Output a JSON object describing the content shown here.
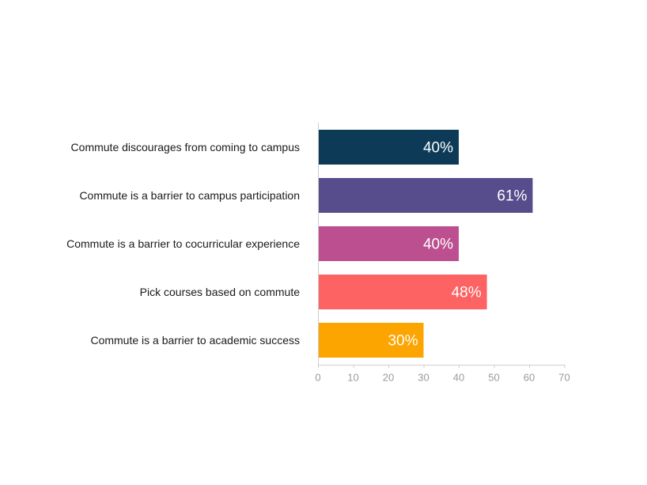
{
  "chart_data": {
    "type": "bar",
    "orientation": "horizontal",
    "categories": [
      "Commute discourages from coming to campus",
      "Commute is a barrier to campus participation",
      "Commute is a barrier to cocurricular experience",
      "Pick courses based on commute",
      "Commute is a barrier to academic success"
    ],
    "values": [
      40,
      61,
      40,
      48,
      30
    ],
    "value_labels": [
      "40%",
      "61%",
      "40%",
      "48%",
      "30%"
    ],
    "colors": [
      "#0d3b57",
      "#584d8c",
      "#bb4f8f",
      "#fc6362",
      "#fca400"
    ],
    "xlim": [
      0,
      70
    ],
    "x_ticks": [
      0,
      10,
      20,
      30,
      40,
      50,
      60,
      70
    ],
    "grid": false,
    "legend": "none"
  }
}
